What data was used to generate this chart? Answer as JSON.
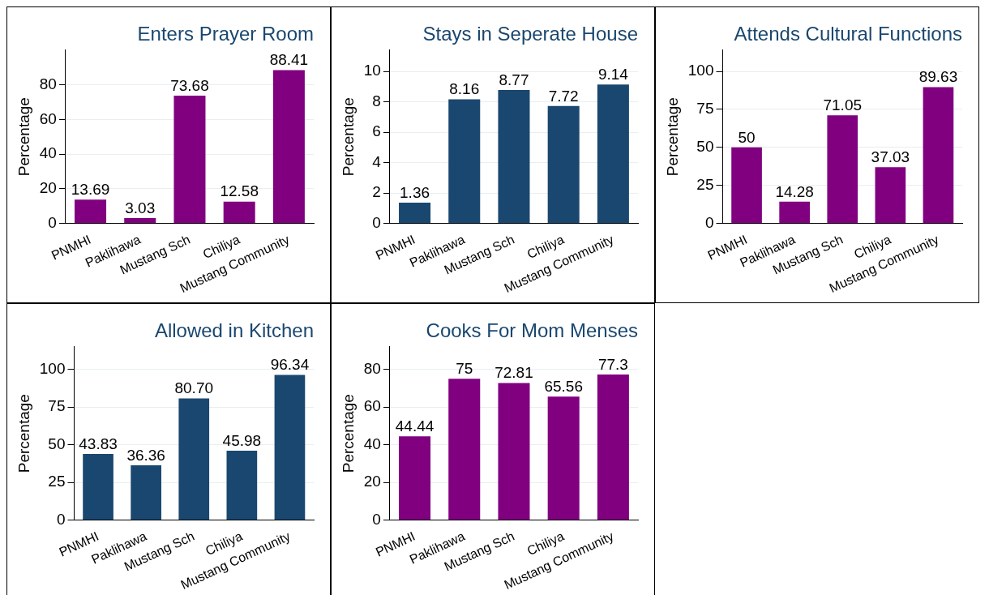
{
  "chart_data": [
    {
      "type": "bar",
      "title": "Enters Prayer Room",
      "ylabel": "Percentage",
      "categories": [
        "PNMHI",
        "Paklihawa",
        "Mustang Sch",
        "Chiliya",
        "Mustang Community"
      ],
      "values": [
        13.69,
        3.03,
        73.68,
        12.58,
        88.41
      ],
      "value_labels": [
        "13.69",
        "3.03",
        "73.68",
        "12.58",
        "88.41"
      ],
      "color": "#800080",
      "ylim": [
        0,
        100
      ],
      "yticks": [
        0,
        20,
        40,
        60,
        80
      ],
      "grid": "y"
    },
    {
      "type": "bar",
      "title": "Stays in Seperate House",
      "ylabel": "Percentage",
      "categories": [
        "PNMHI",
        "Paklihawa",
        "Mustang Sch",
        "Chiliya",
        "Mustang Community"
      ],
      "values": [
        1.36,
        8.16,
        8.77,
        7.72,
        9.14
      ],
      "value_labels": [
        "1.36",
        "8.16",
        "8.77",
        "7.72",
        "9.14"
      ],
      "color": "#1a476f",
      "ylim": [
        0,
        11.4
      ],
      "yticks": [
        0,
        2,
        4,
        6,
        8,
        10
      ],
      "grid": "y"
    },
    {
      "type": "bar",
      "title": "Attends Cultural Functions",
      "ylabel": "Percentage",
      "categories": [
        "PNMHI",
        "Paklihawa",
        "Mustang Sch",
        "Chiliya",
        "Mustang Community"
      ],
      "values": [
        50,
        14.28,
        71.05,
        37.03,
        89.63
      ],
      "value_labels": [
        "50",
        "14.28",
        "71.05",
        "37.03",
        "89.63"
      ],
      "color": "#800080",
      "ylim": [
        0,
        114
      ],
      "yticks": [
        0,
        25,
        50,
        75,
        100
      ],
      "grid": "y"
    },
    {
      "type": "bar",
      "title": "Allowed in Kitchen",
      "ylabel": "Percentage",
      "categories": [
        "PNMHI",
        "Paklihawa",
        "Mustang Sch",
        "Chiliya",
        "Mustang Community"
      ],
      "values": [
        43.83,
        36.36,
        80.7,
        45.98,
        96.34
      ],
      "value_labels": [
        "43.83",
        "36.36",
        "80.70",
        "45.98",
        "96.34"
      ],
      "color": "#1a476f",
      "ylim": [
        0,
        115
      ],
      "yticks": [
        0,
        25,
        50,
        75,
        100
      ],
      "grid": "y"
    },
    {
      "type": "bar",
      "title": "Cooks For Mom Menses",
      "ylabel": "Percentage",
      "categories": [
        "PNMHI",
        "Paklihawa",
        "Mustang Sch",
        "Chiliya",
        "Mustang Community"
      ],
      "values": [
        44.44,
        75,
        72.81,
        65.56,
        77.3
      ],
      "value_labels": [
        "44.44",
        "75",
        "72.81",
        "65.56",
        "77.3"
      ],
      "color": "#800080",
      "ylim": [
        0,
        92
      ],
      "yticks": [
        0,
        20,
        40,
        60,
        80
      ],
      "grid": "y"
    }
  ]
}
